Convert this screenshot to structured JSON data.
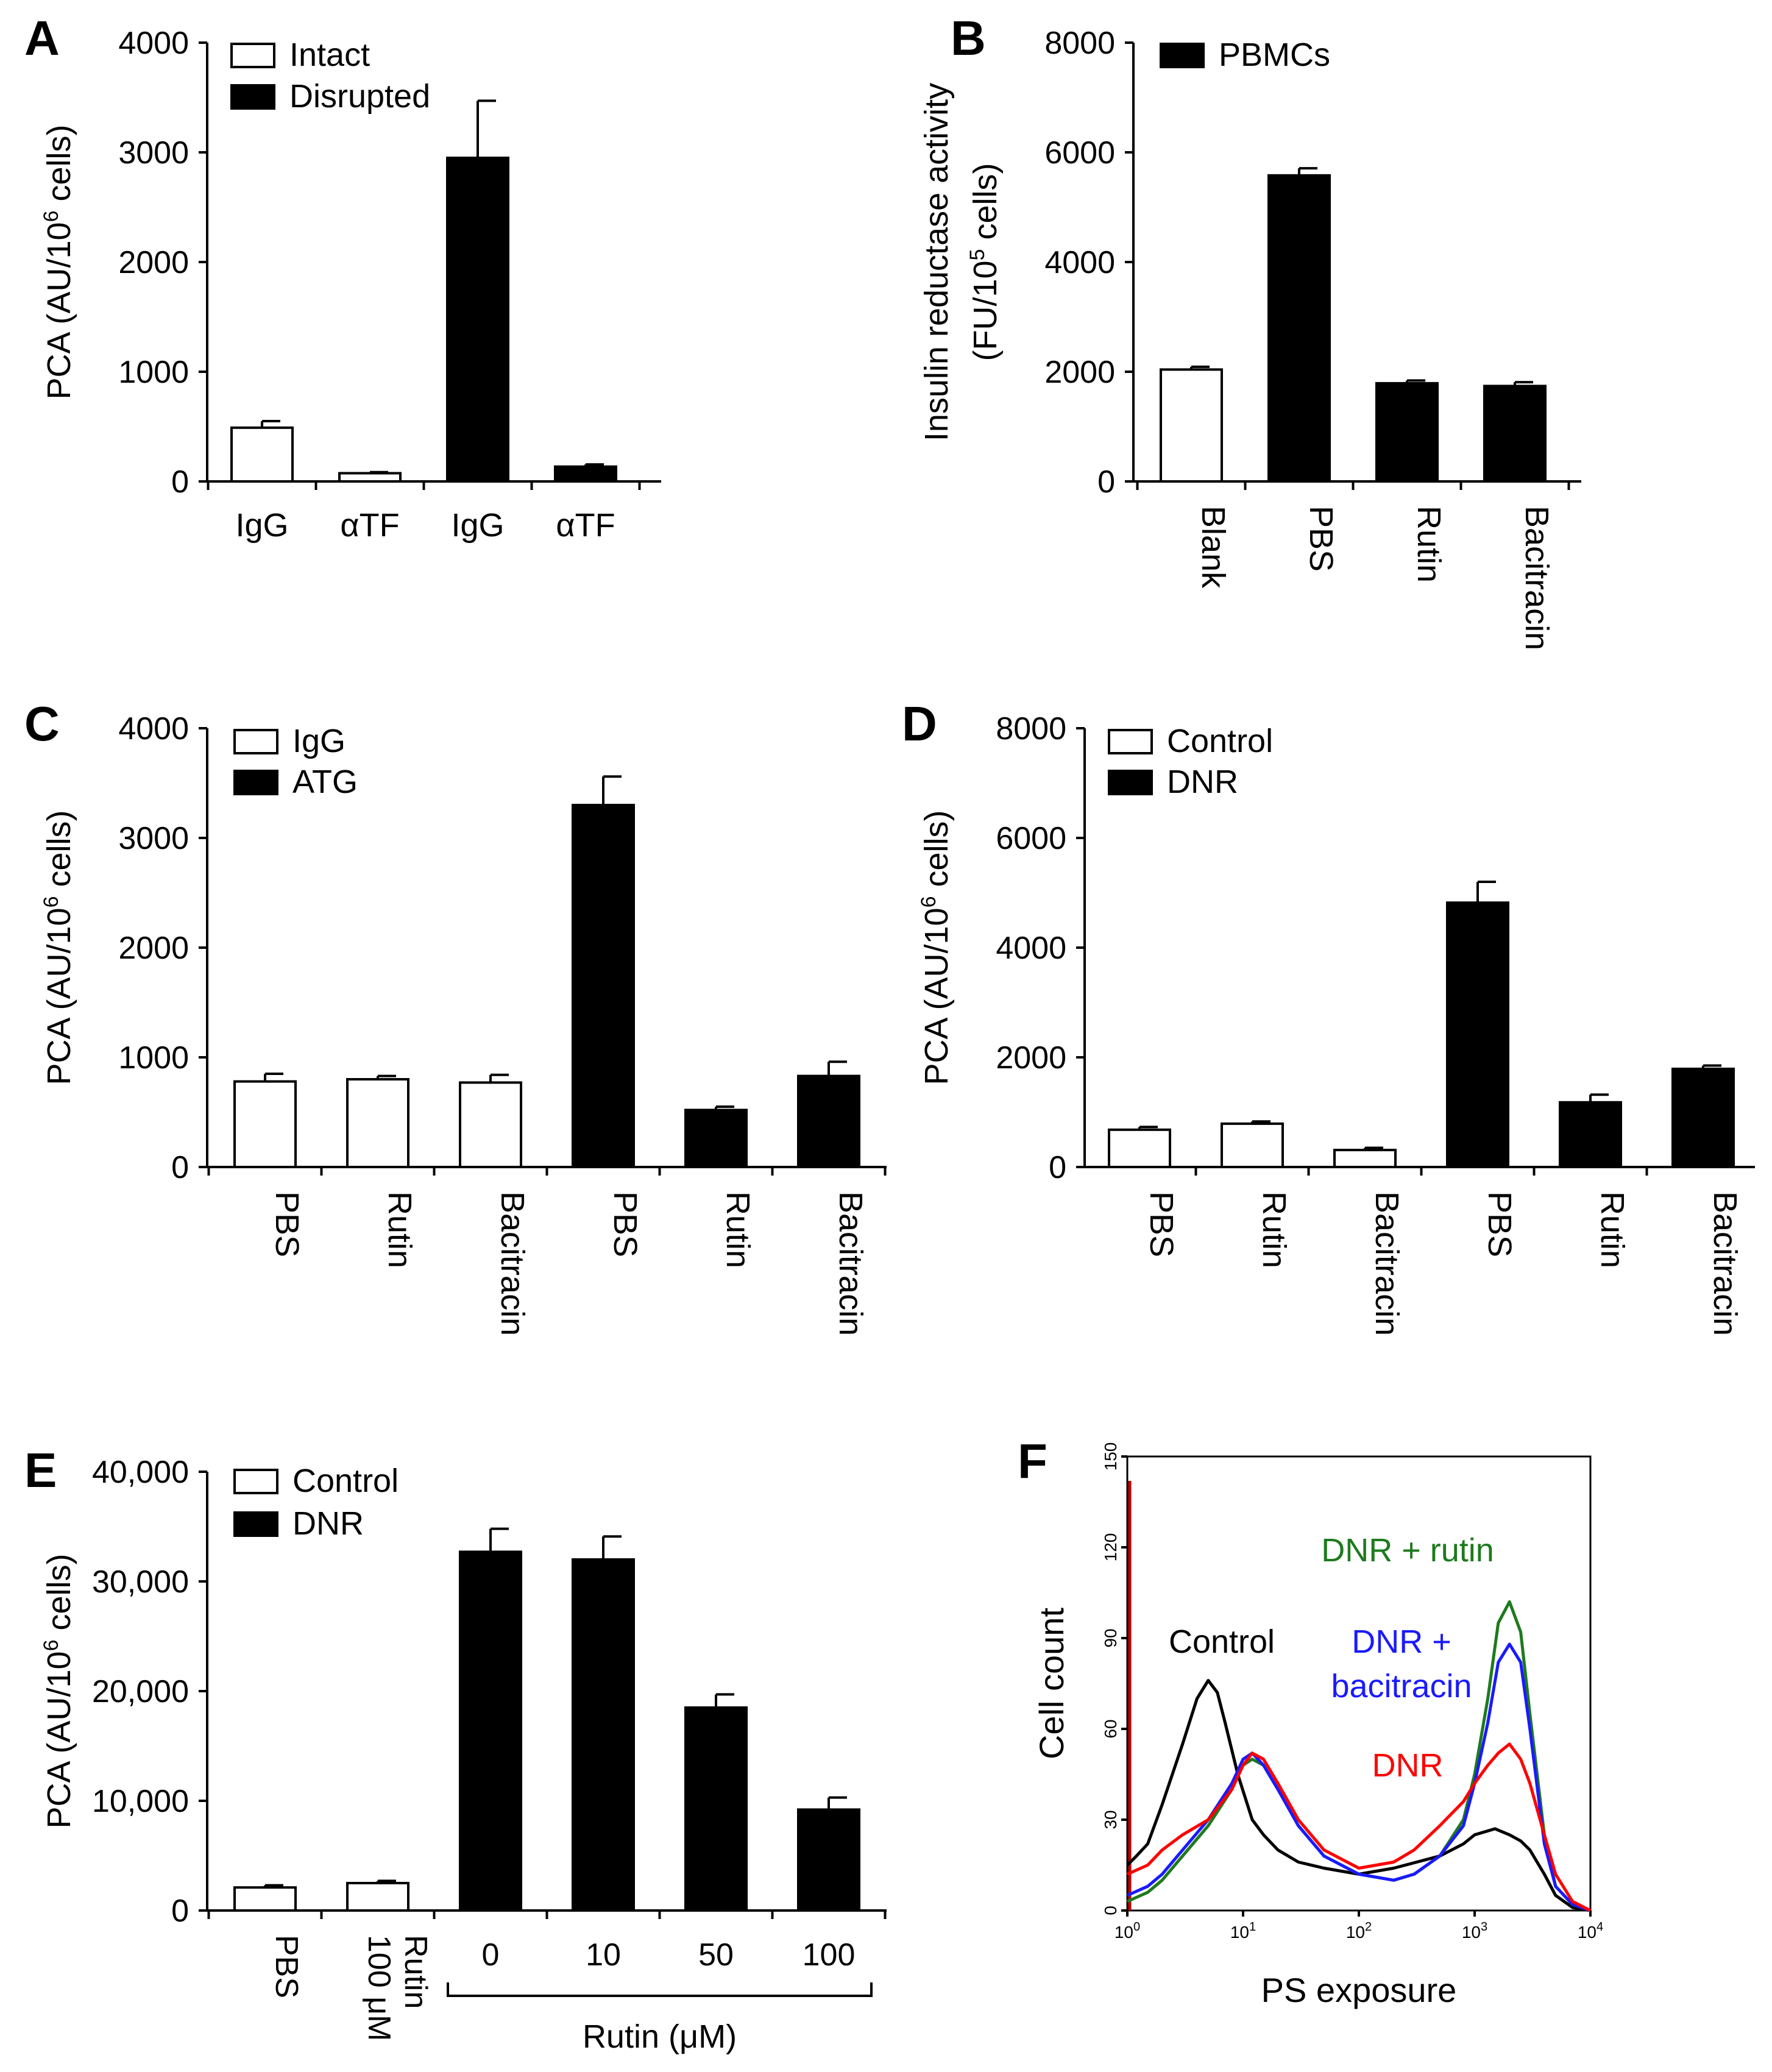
{
  "chart_data": [
    {
      "id": "A",
      "panel_label": "A",
      "type": "bar",
      "ylabel_main": "PCA (AU/10",
      "ylabel_sup": "6",
      "ylabel_tail": " cells)",
      "yticks": [
        "0",
        "1000",
        "2000",
        "3000",
        "4000"
      ],
      "ylim": [
        0,
        4000
      ],
      "legend": [
        "Intact",
        "Disrupted"
      ],
      "categories": [
        "IgG",
        "αTF",
        "IgG",
        "αTF"
      ],
      "values": [
        490,
        75,
        2950,
        135
      ],
      "errors": [
        60,
        10,
        520,
        20
      ],
      "series_index": [
        0,
        0,
        1,
        1
      ]
    },
    {
      "id": "B",
      "panel_label": "B",
      "type": "bar",
      "ylabel_line1": "Insulin reductase activity",
      "ylabel_main": "(FU/10",
      "ylabel_sup": "5",
      "ylabel_tail": " cells)",
      "yticks": [
        "0",
        "2000",
        "4000",
        "6000",
        "8000"
      ],
      "ylim": [
        0,
        8000
      ],
      "legend": [
        "PBMCs"
      ],
      "categories": [
        "Blank",
        "PBS",
        "Rutin",
        "Bacitracin"
      ],
      "values": [
        2040,
        5580,
        1790,
        1740
      ],
      "errors": [
        50,
        130,
        50,
        70
      ],
      "series_index": [
        0,
        1,
        1,
        1
      ]
    },
    {
      "id": "C",
      "panel_label": "C",
      "type": "bar",
      "ylabel_main": "PCA (AU/10",
      "ylabel_sup": "6",
      "ylabel_tail": " cells)",
      "yticks": [
        "0",
        "1000",
        "2000",
        "3000",
        "4000"
      ],
      "ylim": [
        0,
        4000
      ],
      "legend": [
        "IgG",
        "ATG"
      ],
      "categories": [
        "PBS",
        "Rutin",
        "Bacitracin",
        "PBS",
        "Rutin",
        "Bacitracin"
      ],
      "values": [
        780,
        800,
        770,
        3300,
        520,
        830
      ],
      "errors": [
        70,
        30,
        70,
        260,
        30,
        130
      ],
      "series_index": [
        0,
        0,
        0,
        1,
        1,
        1
      ]
    },
    {
      "id": "D",
      "panel_label": "D",
      "type": "bar",
      "ylabel_main": "PCA (AU/10",
      "ylabel_sup": "6",
      "ylabel_tail": " cells)",
      "yticks": [
        "0",
        "2000",
        "4000",
        "6000",
        "8000"
      ],
      "ylim": [
        0,
        8000
      ],
      "legend": [
        "Control",
        "DNR"
      ],
      "categories": [
        "PBS",
        "Rutin",
        "Bacitracin",
        "PBS",
        "Rutin",
        "Bacitracin"
      ],
      "values": [
        680,
        790,
        310,
        4820,
        1180,
        1790
      ],
      "errors": [
        50,
        40,
        40,
        380,
        140,
        60
      ],
      "series_index": [
        0,
        0,
        0,
        1,
        1,
        1
      ]
    },
    {
      "id": "E",
      "panel_label": "E",
      "type": "bar",
      "ylabel_main": "PCA (AU/10",
      "ylabel_sup": "6",
      "ylabel_tail": " cells)",
      "yticks": [
        "0",
        "10,000",
        "20,000",
        "30,000",
        "40,000"
      ],
      "ylim": [
        0,
        40000
      ],
      "legend": [
        "Control",
        "DNR"
      ],
      "categories": [
        "PBS",
        "100 μM Rutin",
        "0",
        "10",
        "50",
        "100"
      ],
      "values": [
        2100,
        2500,
        32700,
        32000,
        18500,
        9200
      ],
      "errors": [
        200,
        200,
        2100,
        2100,
        1200,
        1100
      ],
      "series_index": [
        0,
        0,
        1,
        1,
        1,
        1
      ],
      "rotated_labels": [
        "PBS",
        "Rutin",
        "100 μM"
      ],
      "dose_labels": [
        "0",
        "10",
        "50",
        "100"
      ],
      "bracket_label": "Rutin (μM)"
    },
    {
      "id": "F",
      "panel_label": "F",
      "type": "line",
      "xlabel": "PS exposure",
      "ylabel": "Cell count",
      "xscale": "log",
      "xlim": [
        1,
        10000
      ],
      "ylim": [
        0,
        150
      ],
      "yticks": [
        "0",
        "30",
        "60",
        "90",
        "120",
        "150"
      ],
      "xtick_base": [
        "10",
        "10",
        "10",
        "10",
        "10"
      ],
      "xtick_exp": [
        "0",
        "1",
        "2",
        "3",
        "4"
      ],
      "annotations": [
        "Control",
        "DNR + rutin",
        "DNR +",
        "bacitracin",
        "DNR"
      ],
      "series": [
        {
          "name": "Control",
          "color": "#000000",
          "x": [
            1,
            1.2,
            1.5,
            2,
            3,
            4,
            5,
            6,
            7,
            9,
            12,
            15,
            20,
            30,
            50,
            100,
            200,
            500,
            800,
            1000,
            1500,
            2000,
            2500,
            3000,
            4000,
            5000,
            7000,
            10000
          ],
          "y": [
            15,
            18,
            22,
            35,
            55,
            70,
            76,
            72,
            62,
            45,
            30,
            25,
            20,
            16,
            14,
            12,
            14,
            18,
            22,
            25,
            27,
            25,
            23,
            20,
            12,
            5,
            1,
            0
          ]
        },
        {
          "name": "DNR + rutin",
          "color": "#1e7a1e",
          "x": [
            1,
            1.5,
            2,
            3,
            5,
            8,
            10,
            12,
            15,
            20,
            30,
            50,
            100,
            200,
            300,
            500,
            800,
            1000,
            1300,
            1600,
            2000,
            2500,
            3000,
            4000,
            5000,
            7000,
            10000
          ],
          "y": [
            3,
            6,
            10,
            18,
            28,
            40,
            48,
            50,
            48,
            40,
            28,
            18,
            12,
            10,
            12,
            18,
            30,
            45,
            70,
            95,
            102,
            92,
            65,
            25,
            8,
            2,
            0
          ]
        },
        {
          "name": "DNR + bacitracin",
          "color": "#1a1aff",
          "x": [
            1,
            1.5,
            2,
            3,
            5,
            8,
            10,
            12,
            15,
            20,
            30,
            50,
            100,
            200,
            300,
            500,
            800,
            1000,
            1300,
            1600,
            2000,
            2500,
            3000,
            4000,
            5000,
            7000,
            10000
          ],
          "y": [
            5,
            8,
            12,
            20,
            30,
            42,
            50,
            52,
            48,
            40,
            28,
            18,
            12,
            10,
            12,
            18,
            28,
            42,
            62,
            82,
            88,
            82,
            60,
            22,
            8,
            2,
            0
          ]
        },
        {
          "name": "DNR",
          "color": "#ff0000",
          "x": [
            1,
            1.5,
            2,
            3,
            5,
            8,
            10,
            12,
            15,
            20,
            30,
            50,
            100,
            200,
            300,
            500,
            800,
            1000,
            1300,
            1600,
            2000,
            2500,
            3000,
            4000,
            5000,
            7000,
            10000
          ],
          "y": [
            12,
            15,
            20,
            25,
            30,
            40,
            48,
            52,
            50,
            42,
            30,
            20,
            14,
            16,
            20,
            28,
            36,
            42,
            48,
            52,
            55,
            50,
            42,
            25,
            12,
            3,
            0
          ]
        }
      ]
    }
  ]
}
